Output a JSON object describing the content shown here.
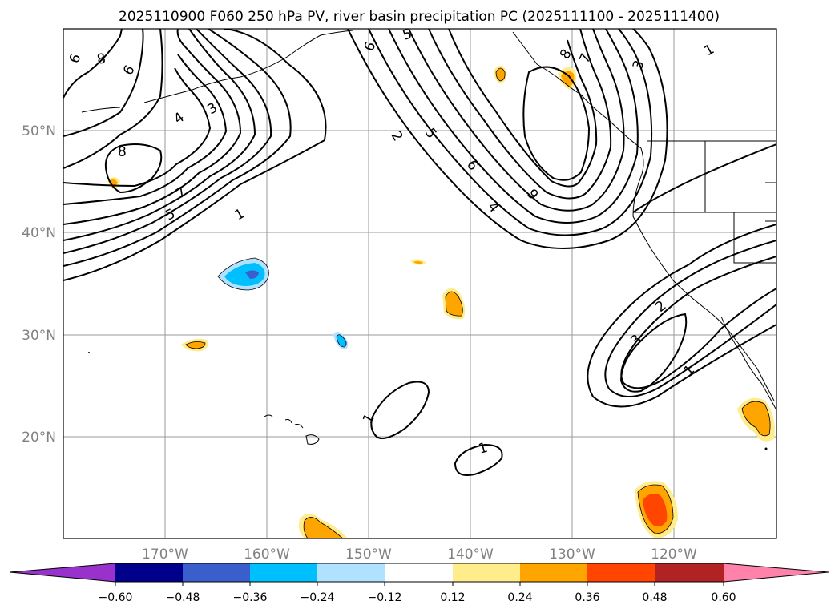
{
  "title": "2025110900 F060 250 hPa PV, river basin precipitation PC (2025111100 - 2025111400)",
  "map": {
    "lon_range": [
      -180,
      -110
    ],
    "lat_range": [
      10,
      60
    ],
    "lat_ticks": [
      {
        "value": 50,
        "label": "50°N"
      },
      {
        "value": 40,
        "label": "40°N"
      },
      {
        "value": 30,
        "label": "30°N"
      },
      {
        "value": 20,
        "label": "20°N"
      }
    ],
    "lon_ticks": [
      {
        "value": -170,
        "label": "170°W"
      },
      {
        "value": -160,
        "label": "160°W"
      },
      {
        "value": -150,
        "label": "150°W"
      },
      {
        "value": -140,
        "label": "140°W"
      },
      {
        "value": -130,
        "label": "130°W"
      },
      {
        "value": -120,
        "label": "120°W"
      }
    ],
    "pv_contour_labels": [
      "6",
      "8",
      "6",
      "3",
      "4",
      "8",
      "7",
      "5",
      "1",
      "5",
      "6",
      "2",
      "5",
      "6",
      "4",
      "9",
      "8",
      "7",
      "3",
      "1",
      "2",
      "3",
      "1",
      "1",
      "1"
    ]
  },
  "colorbar": {
    "colors": [
      "#9932cc",
      "#00008b",
      "#3a5fcd",
      "#00bfff",
      "#b0e2ff",
      "#ffffff",
      "#ffec8b",
      "#ffa500",
      "#ff4500",
      "#b22222",
      "#ff82ab"
    ],
    "tick_labels": [
      "−0.60",
      "−0.48",
      "−0.36",
      "−0.24",
      "−0.12",
      "0.12",
      "0.24",
      "0.36",
      "0.48",
      "0.60"
    ]
  }
}
